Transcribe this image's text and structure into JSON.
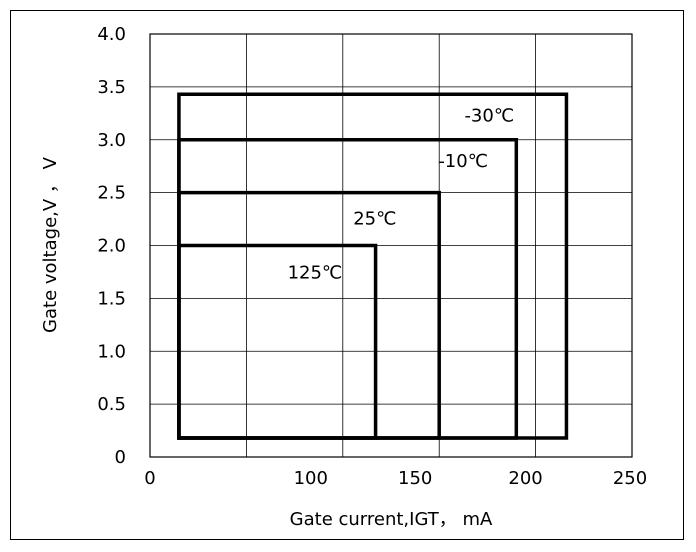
{
  "chart_data": {
    "type": "line",
    "title": "",
    "xlabel": "Gate current,IGT， mA",
    "ylabel": "Gate voltage,V ， V",
    "xlim": [
      0,
      250
    ],
    "ylim": [
      0,
      4.0
    ],
    "grid": true,
    "x_ticks": [
      "0",
      "100",
      "150",
      "200",
      "250"
    ],
    "y_ticks": [
      "0",
      "0.5",
      "1.0",
      "1.5",
      "2.0",
      "2.5",
      "3.0",
      "3.5",
      "4.0"
    ],
    "baseline": {
      "x_min": 15,
      "y_min": 0.18
    },
    "series": [
      {
        "name": "-30℃",
        "x_max": 216,
        "y_max": 3.43
      },
      {
        "name": "-10℃",
        "x_max": 190,
        "y_max": 3.0
      },
      {
        "name": "25℃",
        "x_max": 150,
        "y_max": 2.5
      },
      {
        "name": "125℃",
        "x_max": 117,
        "y_max": 2.0
      }
    ]
  }
}
